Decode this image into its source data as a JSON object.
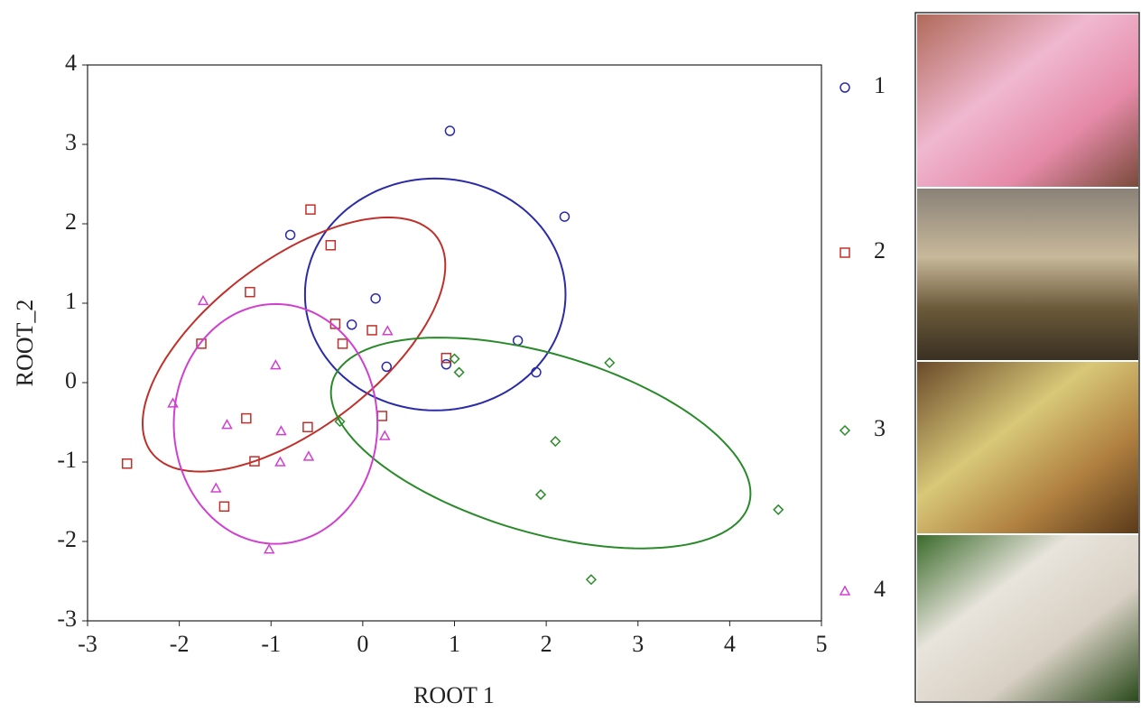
{
  "chart_data": {
    "type": "scatter",
    "xlabel": "ROOT 1",
    "ylabel": "ROOT_2",
    "xlim": [
      -3,
      5
    ],
    "ylim": [
      -3,
      4
    ],
    "xticks": [
      -3,
      -2,
      -1,
      0,
      1,
      2,
      3,
      4,
      5
    ],
    "yticks": [
      -3,
      -2,
      -1,
      0,
      1,
      2,
      3,
      4
    ],
    "series": [
      {
        "name": "1",
        "color": "#2b2ba8",
        "marker": "circle",
        "x": [
          0.95,
          2.2,
          -0.79,
          0.14,
          -0.12,
          1.69,
          1.89,
          0.26,
          0.91
        ],
        "y": [
          3.17,
          2.09,
          1.86,
          1.06,
          0.73,
          0.53,
          0.13,
          0.2,
          0.23
        ],
        "ellipse": {
          "cx": 0.79,
          "cy": 1.11,
          "rx": 1.42,
          "ry": 1.46,
          "angle": 0
        }
      },
      {
        "name": "2",
        "color": "#c0302b",
        "marker": "square",
        "x": [
          -0.57,
          -0.35,
          -1.23,
          -0.3,
          0.1,
          -0.22,
          -1.76,
          0.91,
          -1.27,
          -0.6,
          0.21,
          -1.18,
          -2.57,
          -1.51
        ],
        "y": [
          2.18,
          1.73,
          1.14,
          0.74,
          0.66,
          0.49,
          0.49,
          0.31,
          -0.45,
          -0.56,
          -0.42,
          -0.99,
          -1.02,
          -1.56
        ],
        "ellipse": {
          "cx": -0.75,
          "cy": 0.48,
          "rx": 2.07,
          "ry": 1.0,
          "angle": 43.6
        }
      },
      {
        "name": "3",
        "color": "#2a8a2a",
        "marker": "diamond",
        "x": [
          1.0,
          1.05,
          2.69,
          -0.25,
          2.1,
          1.94,
          4.53,
          2.49
        ],
        "y": [
          0.3,
          0.13,
          0.25,
          -0.49,
          -0.74,
          -1.41,
          -1.6,
          -2.48
        ],
        "ellipse": {
          "cx": 1.94,
          "cy": -0.76,
          "rx": 2.4,
          "ry": 1.11,
          "angle": -20
        }
      },
      {
        "name": "4",
        "color": "#d040d0",
        "marker": "triangle",
        "x": [
          -1.74,
          0.27,
          -0.95,
          -2.07,
          -1.48,
          -0.89,
          -0.59,
          -0.9,
          0.24,
          -1.6,
          -1.02
        ],
        "y": [
          1.03,
          0.65,
          0.22,
          -0.26,
          -0.53,
          -0.61,
          -0.93,
          -1.0,
          -0.67,
          -1.33,
          -2.1
        ],
        "ellipse": {
          "cx": -0.95,
          "cy": -0.52,
          "rx": 1.11,
          "ry": 1.51,
          "angle": 0
        }
      }
    ]
  }
}
